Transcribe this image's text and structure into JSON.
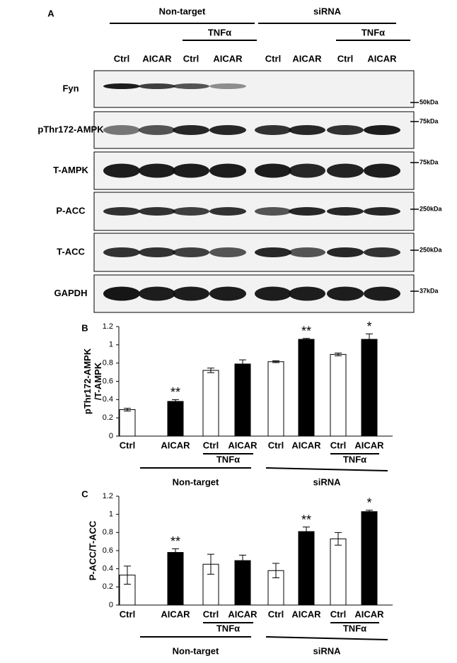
{
  "panel_a": {
    "label": "A",
    "groups": [
      "Non-target",
      "siRNA"
    ],
    "subgroups": [
      "TNFα",
      "TNFα"
    ],
    "lanes": [
      "Ctrl",
      "AICAR",
      "Ctrl",
      "AICAR",
      "Ctrl",
      "AICAR",
      "Ctrl",
      "AICAR"
    ],
    "rows": [
      {
        "name": "Fyn",
        "marker": "50kDa"
      },
      {
        "name": "pThr172-AMPK",
        "marker": "75kDa"
      },
      {
        "name": "T-AMPK",
        "marker": "75kDa"
      },
      {
        "name": "P-ACC",
        "marker": "250kDa"
      },
      {
        "name": "T-ACC",
        "marker": "250kDa"
      },
      {
        "name": "GAPDH",
        "marker": "37kDa"
      }
    ]
  },
  "chart_data": [
    {
      "type": "bar",
      "panel": "B",
      "ylabel": [
        "pThr172-AMPK",
        "/T-AMPK"
      ],
      "categories": [
        "Ctrl",
        "AICAR",
        "Ctrl",
        "AICAR",
        "Ctrl",
        "AICAR",
        "Ctrl",
        "AICAR"
      ],
      "values": [
        0.29,
        0.38,
        0.72,
        0.79,
        0.815,
        1.06,
        0.895,
        1.06
      ],
      "errors": [
        0.015,
        0.02,
        0.025,
        0.045,
        0.01,
        0.01,
        0.015,
        0.06
      ],
      "colors": [
        "#ffffff",
        "#000000",
        "#ffffff",
        "#000000",
        "#ffffff",
        "#000000",
        "#ffffff",
        "#000000"
      ],
      "annotations": [
        null,
        "**",
        null,
        null,
        null,
        "**",
        null,
        "*"
      ],
      "subgroups": [
        "TNFα",
        "TNFα"
      ],
      "groups": [
        "Non-target",
        "siRNA"
      ],
      "ylim": [
        0,
        1.2
      ],
      "yticks": [
        0,
        0.2,
        0.4,
        0.6,
        0.8,
        1,
        1.2
      ]
    },
    {
      "type": "bar",
      "panel": "C",
      "ylabel": [
        "P-ACC/T-ACC"
      ],
      "categories": [
        "Ctrl",
        "AICAR",
        "Ctrl",
        "AICAR",
        "Ctrl",
        "AICAR",
        "Ctrl",
        "AICAR"
      ],
      "values": [
        0.33,
        0.58,
        0.45,
        0.49,
        0.38,
        0.81,
        0.73,
        1.03
      ],
      "errors": [
        0.1,
        0.04,
        0.11,
        0.06,
        0.08,
        0.05,
        0.07,
        0.015
      ],
      "colors": [
        "#ffffff",
        "#000000",
        "#ffffff",
        "#000000",
        "#ffffff",
        "#000000",
        "#ffffff",
        "#000000"
      ],
      "annotations": [
        null,
        "**",
        null,
        null,
        null,
        "**",
        null,
        "*"
      ],
      "subgroups": [
        "TNFα",
        "TNFα"
      ],
      "groups": [
        "Non-target",
        "siRNA"
      ],
      "ylim": [
        0,
        1.2
      ],
      "yticks": [
        0,
        0.2,
        0.4,
        0.6,
        0.8,
        1,
        1.2
      ]
    }
  ]
}
